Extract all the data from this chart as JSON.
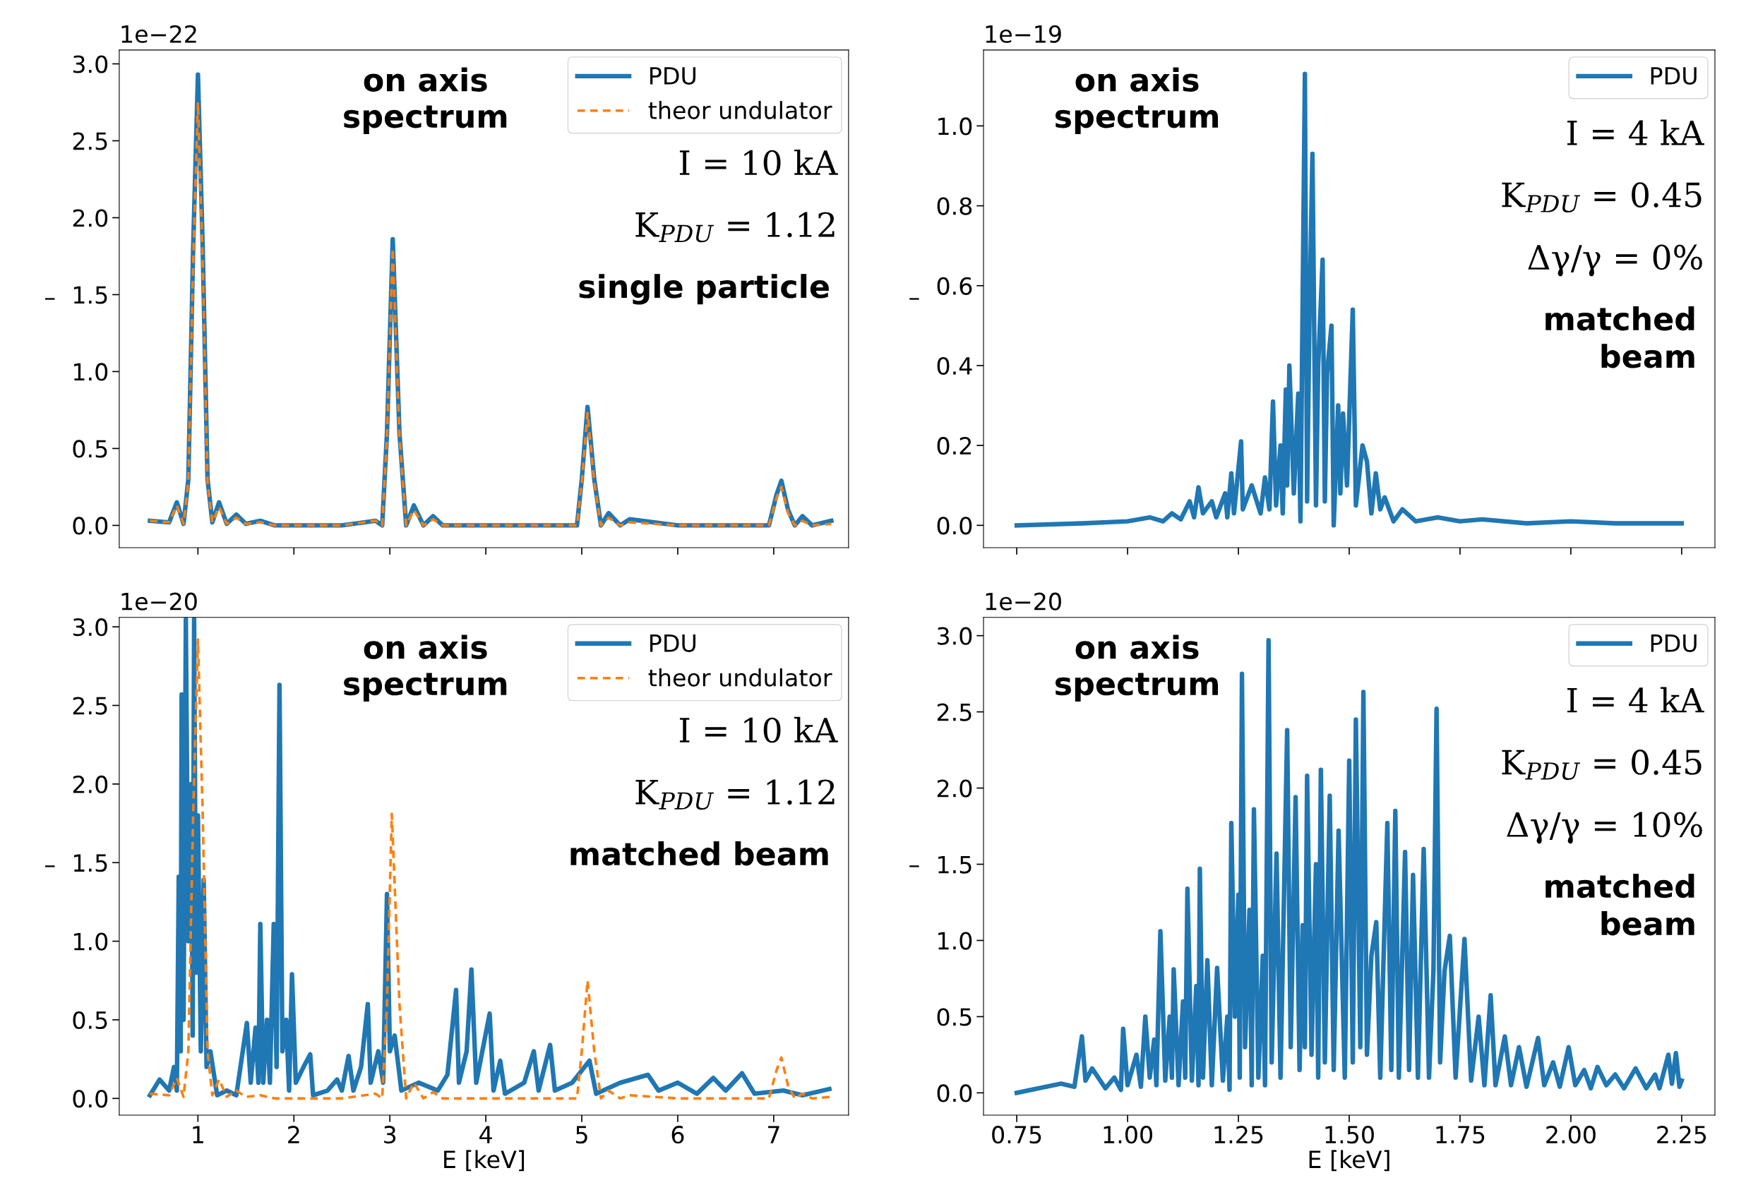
{
  "chart_data": [
    {
      "type": "line",
      "xlim": [
        0.18,
        7.78
      ],
      "ylim": [
        -0.145,
        3.09
      ],
      "yticks": [
        {
          "value": 0,
          "label": "0.0"
        },
        0.5,
        {
          "value": 1,
          "label": "1.0"
        },
        1.5,
        {
          "value": 2,
          "label": "2.0"
        },
        2.5,
        {
          "value": 3,
          "label": "3.0"
        }
      ],
      "xticks": [
        {
          "value": 1,
          "label": null
        },
        {
          "value": 2,
          "label": null
        },
        {
          "value": 3,
          "label": null
        },
        {
          "value": 4,
          "label": null
        },
        {
          "value": 5,
          "label": null
        },
        {
          "value": 6,
          "label": null
        },
        {
          "value": 7,
          "label": null
        }
      ],
      "tick_labels": "y",
      "ylabel": "–",
      "legend": "top right",
      "grid": false,
      "annotations": [
        "1e−22",
        "on axis\nspectrum",
        "I = 10 kA",
        "K$_{PDU}$ = 1.12",
        "single particle"
      ],
      "series": [
        {
          "name": "PDU",
          "color": "#1f77b4",
          "line_style": "solid",
          "x": [
            0.5,
            0.7,
            0.78,
            0.85,
            0.9,
            0.95,
            1.0,
            1.05,
            1.1,
            1.15,
            1.22,
            1.3,
            1.4,
            1.5,
            1.65,
            1.8,
            2.5,
            2.85,
            2.92,
            2.97,
            3.03,
            3.1,
            3.17,
            3.25,
            3.35,
            3.45,
            3.55,
            4.0,
            4.95,
            5.0,
            5.06,
            5.13,
            5.2,
            5.28,
            5.4,
            5.5,
            6.0,
            6.95,
            7.03,
            7.08,
            7.15,
            7.22,
            7.3,
            7.4,
            7.6
          ],
          "values": [
            0.03,
            0.02,
            0.15,
            0.01,
            0.3,
            1.8,
            2.93,
            1.8,
            0.3,
            0.02,
            0.15,
            0.01,
            0.07,
            0.01,
            0.03,
            0.0,
            0.0,
            0.03,
            0.0,
            0.6,
            1.86,
            0.6,
            0.0,
            0.13,
            0.0,
            0.06,
            0.0,
            0.0,
            0.0,
            0.3,
            0.77,
            0.3,
            0.0,
            0.08,
            0.0,
            0.04,
            0.0,
            0.0,
            0.2,
            0.29,
            0.1,
            0.0,
            0.06,
            0.0,
            0.03
          ]
        },
        {
          "name": "theor undulator",
          "color": "#ff7f0e",
          "line_style": "dashed",
          "x": [
            0.5,
            0.7,
            0.78,
            0.85,
            0.9,
            0.95,
            1.0,
            1.05,
            1.1,
            1.15,
            1.22,
            1.3,
            1.4,
            1.5,
            1.65,
            1.8,
            2.5,
            2.85,
            2.92,
            2.97,
            3.03,
            3.1,
            3.17,
            3.25,
            3.35,
            3.45,
            3.55,
            4.0,
            4.95,
            5.0,
            5.06,
            5.13,
            5.2,
            5.28,
            5.4,
            5.5,
            6.0,
            6.95,
            7.03,
            7.08,
            7.15,
            7.22,
            7.3,
            7.4,
            7.6
          ],
          "values": [
            0.03,
            0.02,
            0.13,
            0.01,
            0.28,
            1.7,
            2.75,
            1.7,
            0.28,
            0.02,
            0.12,
            0.01,
            0.05,
            0.01,
            0.02,
            0.0,
            0.0,
            0.03,
            0.0,
            0.58,
            1.8,
            0.58,
            0.0,
            0.1,
            0.0,
            0.04,
            0.0,
            0.0,
            0.0,
            0.28,
            0.73,
            0.28,
            0.0,
            0.05,
            0.0,
            0.02,
            0.0,
            0.0,
            0.18,
            0.25,
            0.08,
            0.0,
            0.03,
            0.0,
            0.01
          ]
        }
      ]
    },
    {
      "type": "line",
      "xlim": [
        0.675,
        2.325
      ],
      "ylim": [
        -0.056,
        1.19
      ],
      "yticks": [
        {
          "value": 0,
          "label": "0.0"
        },
        0.2,
        0.4,
        0.6,
        0.8,
        {
          "value": 1,
          "label": "1.0"
        }
      ],
      "xticks": [
        {
          "value": 0.75,
          "label": null
        },
        {
          "value": 1.0,
          "label": null
        },
        {
          "value": 1.25,
          "label": null
        },
        {
          "value": 1.5,
          "label": null
        },
        {
          "value": 1.75,
          "label": null
        },
        {
          "value": 2.0,
          "label": null
        },
        {
          "value": 2.25,
          "label": null
        }
      ],
      "tick_labels": "y",
      "ylabel": "–",
      "legend": "top right",
      "grid": false,
      "annotations": [
        "1e−19",
        "on axis\nspectrum",
        "I = 4 kA",
        "K$_{PDU}$ = 0.45",
        "Δγ/γ = 0%",
        "matched\nbeam"
      ],
      "series": [
        {
          "name": "PDU",
          "color": "#1f77b4",
          "line_style": "solid",
          "x": [
            0.75,
            0.9,
            1.0,
            1.05,
            1.08,
            1.1,
            1.12,
            1.14,
            1.15,
            1.16,
            1.17,
            1.19,
            1.2,
            1.22,
            1.225,
            1.234,
            1.24,
            1.256,
            1.26,
            1.28,
            1.3,
            1.31,
            1.32,
            1.328,
            1.335,
            1.345,
            1.35,
            1.357,
            1.36,
            1.365,
            1.375,
            1.385,
            1.39,
            1.4,
            1.405,
            1.41,
            1.417,
            1.425,
            1.43,
            1.44,
            1.445,
            1.45,
            1.46,
            1.465,
            1.475,
            1.48,
            1.486,
            1.495,
            1.508,
            1.515,
            1.53,
            1.54,
            1.55,
            1.56,
            1.57,
            1.58,
            1.6,
            1.62,
            1.65,
            1.7,
            1.75,
            1.8,
            1.9,
            2.0,
            2.1,
            2.25
          ],
          "values": [
            0.0,
            0.005,
            0.01,
            0.02,
            0.01,
            0.03,
            0.015,
            0.06,
            0.02,
            0.095,
            0.03,
            0.06,
            0.02,
            0.08,
            0.02,
            0.13,
            0.03,
            0.21,
            0.04,
            0.1,
            0.03,
            0.12,
            0.04,
            0.31,
            0.05,
            0.2,
            0.03,
            0.34,
            0.1,
            0.4,
            0.08,
            0.33,
            0.01,
            1.13,
            0.06,
            0.5,
            0.93,
            0.05,
            0.4,
            0.665,
            0.06,
            0.38,
            0.5,
            0.0,
            0.3,
            0.08,
            0.28,
            0.1,
            0.54,
            0.05,
            0.2,
            0.16,
            0.03,
            0.13,
            0.04,
            0.07,
            0.01,
            0.04,
            0.01,
            0.02,
            0.01,
            0.015,
            0.005,
            0.01,
            0.005,
            0.005
          ]
        }
      ]
    },
    {
      "type": "line",
      "xlim": [
        0.18,
        7.78
      ],
      "ylim": [
        -0.106,
        3.06
      ],
      "yticks": [
        {
          "value": 0,
          "label": "0.0"
        },
        0.5,
        {
          "value": 1,
          "label": "1.0"
        },
        1.5,
        {
          "value": 2,
          "label": "2.0"
        },
        2.5,
        {
          "value": 3,
          "label": "3.0"
        }
      ],
      "xticks": [
        1,
        2,
        3,
        4,
        5,
        6,
        7
      ],
      "xlabel": "E [keV]",
      "ylabel": "–",
      "legend": "top right",
      "grid": false,
      "annotations": [
        "1e−20",
        "on axis\nspectrum",
        "I = 10 kA",
        "K$_{PDU}$ = 1.12",
        "matched beam"
      ],
      "series": [
        {
          "name": "PDU",
          "color": "#1f77b4",
          "line_style": "solid",
          "x": [
            0.5,
            0.6,
            0.7,
            0.75,
            0.78,
            0.8,
            0.82,
            0.83,
            0.85,
            0.874,
            0.9,
            0.93,
            0.945,
            0.96,
            0.98,
            1.0,
            1.03,
            1.06,
            1.09,
            1.13,
            1.2,
            1.3,
            1.4,
            1.51,
            1.55,
            1.6,
            1.63,
            1.65,
            1.68,
            1.72,
            1.75,
            1.79,
            1.82,
            1.85,
            1.88,
            1.92,
            1.95,
            1.98,
            2.02,
            2.1,
            2.17,
            2.2,
            2.35,
            2.45,
            2.5,
            2.57,
            2.62,
            2.7,
            2.77,
            2.8,
            2.88,
            2.93,
            2.97,
            3.0,
            3.05,
            3.12,
            3.3,
            3.5,
            3.6,
            3.69,
            3.72,
            3.8,
            3.85,
            3.9,
            4.04,
            4.08,
            4.15,
            4.2,
            4.4,
            4.5,
            4.55,
            4.67,
            4.72,
            4.9,
            5.08,
            5.15,
            5.4,
            5.69,
            5.8,
            6.0,
            6.2,
            6.37,
            6.5,
            6.67,
            6.8,
            7.1,
            7.3,
            7.58
          ],
          "values": [
            0.02,
            0.12,
            0.05,
            0.2,
            0.05,
            1.41,
            0.3,
            2.57,
            0.5,
            3.05,
            1.0,
            2.0,
            0.4,
            3.05,
            0.8,
            1.8,
            0.3,
            1.39,
            0.2,
            0.3,
            0.02,
            0.05,
            0.02,
            0.48,
            0.1,
            0.45,
            0.1,
            1.11,
            0.1,
            0.5,
            0.1,
            1.11,
            0.2,
            2.63,
            0.3,
            0.5,
            0.05,
            0.79,
            0.1,
            0.2,
            0.28,
            0.02,
            0.05,
            0.12,
            0.05,
            0.27,
            0.05,
            0.2,
            0.6,
            0.1,
            0.3,
            0.1,
            1.3,
            0.3,
            0.4,
            0.05,
            0.1,
            0.05,
            0.15,
            0.69,
            0.1,
            0.3,
            0.82,
            0.1,
            0.54,
            0.05,
            0.24,
            0.03,
            0.1,
            0.3,
            0.05,
            0.34,
            0.05,
            0.1,
            0.24,
            0.03,
            0.1,
            0.15,
            0.05,
            0.1,
            0.03,
            0.13,
            0.05,
            0.16,
            0.03,
            0.05,
            0.02,
            0.06
          ]
        },
        {
          "name": "theor undulator",
          "color": "#ff7f0e",
          "line_style": "dashed",
          "x": [
            0.5,
            0.7,
            0.78,
            0.85,
            0.9,
            0.95,
            1.0,
            1.05,
            1.1,
            1.15,
            1.22,
            1.3,
            1.4,
            1.5,
            1.65,
            1.8,
            2.5,
            2.85,
            2.92,
            2.97,
            3.02,
            3.1,
            3.17,
            3.25,
            3.35,
            3.45,
            3.55,
            4.0,
            4.95,
            5.0,
            5.06,
            5.13,
            5.2,
            5.28,
            5.4,
            5.5,
            6.0,
            6.95,
            7.03,
            7.08,
            7.15,
            7.22,
            7.3,
            7.4,
            7.6
          ],
          "values": [
            0.03,
            0.02,
            0.13,
            0.01,
            0.3,
            1.8,
            2.92,
            1.8,
            0.3,
            0.02,
            0.12,
            0.01,
            0.05,
            0.01,
            0.02,
            0.0,
            0.0,
            0.03,
            0.0,
            0.6,
            1.81,
            0.6,
            0.0,
            0.1,
            0.0,
            0.04,
            0.0,
            0.0,
            0.0,
            0.3,
            0.75,
            0.3,
            0.0,
            0.05,
            0.0,
            0.02,
            0.0,
            0.0,
            0.18,
            0.26,
            0.08,
            0.0,
            0.03,
            0.0,
            0.01
          ]
        }
      ]
    },
    {
      "type": "line",
      "xlim": [
        0.675,
        2.325
      ],
      "ylim": [
        -0.146,
        3.12
      ],
      "yticks": [
        {
          "value": 0,
          "label": "0.0"
        },
        0.5,
        {
          "value": 1,
          "label": "1.0"
        },
        1.5,
        {
          "value": 2,
          "label": "2.0"
        },
        2.5,
        {
          "value": 3,
          "label": "3.0"
        }
      ],
      "xticks": [
        0.75,
        {
          "value": 1.0,
          "label": "1.00"
        },
        1.25,
        {
          "value": 1.5,
          "label": "1.50"
        },
        1.75,
        {
          "value": 2.0,
          "label": "2.00"
        },
        2.25
      ],
      "xlabel": "E [keV]",
      "ylabel": "–",
      "legend": "top right",
      "grid": false,
      "annotations": [
        "1e−20",
        "on axis\nspectrum",
        "I = 4 kA",
        "K$_{PDU}$ = 0.45",
        "Δγ/γ = 10%",
        "matched\nbeam"
      ],
      "series": [
        {
          "name": "PDU",
          "color": "#1f77b4",
          "line_style": "solid",
          "x": [
            0.75,
            0.8,
            0.85,
            0.88,
            0.897,
            0.905,
            0.92,
            0.95,
            0.97,
            0.985,
            0.99,
            1.0,
            1.02,
            1.03,
            1.04,
            1.05,
            1.06,
            1.065,
            1.074,
            1.085,
            1.095,
            1.1,
            1.104,
            1.115,
            1.125,
            1.13,
            1.135,
            1.145,
            1.155,
            1.16,
            1.163,
            1.17,
            1.18,
            1.19,
            1.202,
            1.215,
            1.225,
            1.23,
            1.234,
            1.242,
            1.25,
            1.253,
            1.258,
            1.265,
            1.275,
            1.28,
            1.285,
            1.295,
            1.305,
            1.31,
            1.318,
            1.325,
            1.336,
            1.345,
            1.36,
            1.368,
            1.379,
            1.388,
            1.395,
            1.4,
            1.405,
            1.415,
            1.425,
            1.43,
            1.436,
            1.445,
            1.456,
            1.465,
            1.476,
            1.49,
            1.5,
            1.508,
            1.515,
            1.525,
            1.532,
            1.54,
            1.55,
            1.561,
            1.57,
            1.586,
            1.595,
            1.604,
            1.612,
            1.626,
            1.635,
            1.644,
            1.655,
            1.668,
            1.68,
            1.69,
            1.697,
            1.705,
            1.715,
            1.727,
            1.74,
            1.76,
            1.775,
            1.792,
            1.805,
            1.819,
            1.83,
            1.851,
            1.865,
            1.883,
            1.9,
            1.926,
            1.94,
            1.96,
            1.975,
            1.995,
            2.01,
            2.03,
            2.045,
            2.06,
            2.08,
            2.1,
            2.12,
            2.146,
            2.17,
            2.19,
            2.2,
            2.22,
            2.228,
            2.237,
            2.245,
            2.25
          ],
          "values": [
            0.0,
            0.03,
            0.06,
            0.04,
            0.37,
            0.08,
            0.16,
            0.03,
            0.1,
            0.02,
            0.42,
            0.05,
            0.25,
            0.04,
            0.5,
            0.1,
            0.35,
            0.05,
            1.06,
            0.08,
            0.5,
            0.1,
            0.81,
            0.05,
            0.6,
            0.1,
            1.34,
            0.08,
            0.7,
            0.05,
            1.47,
            0.1,
            0.87,
            0.05,
            0.82,
            0.08,
            0.5,
            0.02,
            1.77,
            0.5,
            1.3,
            0.1,
            2.75,
            0.3,
            1.2,
            0.05,
            1.86,
            0.1,
            0.9,
            0.05,
            2.97,
            0.2,
            1.57,
            0.1,
            2.38,
            0.3,
            1.94,
            0.15,
            1.1,
            0.3,
            2.08,
            0.25,
            1.5,
            0.1,
            2.12,
            0.2,
            1.95,
            0.15,
            1.72,
            0.1,
            2.18,
            0.2,
            2.45,
            0.3,
            2.63,
            0.25,
            0.9,
            1.12,
            0.1,
            1.77,
            0.15,
            1.85,
            0.1,
            1.58,
            0.15,
            1.43,
            0.1,
            1.6,
            0.1,
            0.8,
            2.52,
            0.2,
            0.8,
            1.03,
            0.1,
            1.01,
            0.08,
            0.5,
            0.05,
            0.64,
            0.05,
            0.37,
            0.05,
            0.3,
            0.04,
            0.36,
            0.05,
            0.2,
            0.04,
            0.3,
            0.05,
            0.15,
            0.03,
            0.17,
            0.05,
            0.12,
            0.03,
            0.16,
            0.03,
            0.12,
            0.03,
            0.25,
            0.06,
            0.26,
            0.04,
            0.08
          ]
        }
      ]
    }
  ]
}
